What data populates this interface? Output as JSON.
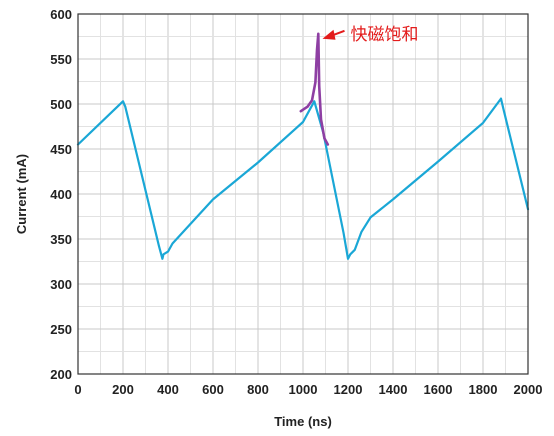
{
  "chart_data": {
    "type": "line",
    "xlabel": "Time (ns)",
    "ylabel": "Current (mA)",
    "xlim": [
      0,
      2000
    ],
    "ylim": [
      200,
      600
    ],
    "xticks": [
      0,
      200,
      400,
      600,
      800,
      1000,
      1200,
      1400,
      1600,
      1800,
      2000
    ],
    "yticks": [
      200,
      250,
      300,
      350,
      400,
      450,
      500,
      550,
      600
    ],
    "grid": true,
    "series": [
      {
        "color": "#1aa7d6",
        "x": [
          0,
          200,
          210,
          360,
          375,
          380,
          400,
          420,
          600,
          800,
          1000,
          1050,
          1090,
          1180,
          1200,
          1210,
          1230,
          1260,
          1300,
          1400,
          1600,
          1800,
          1880,
          1890,
          2000
        ],
        "y": [
          455,
          503,
          497,
          342,
          328,
          333,
          336,
          345,
          394,
          435,
          480,
          503,
          468,
          357,
          328,
          333,
          338,
          358,
          374,
          394,
          436,
          479,
          506,
          495,
          383
        ]
      },
      {
        "color": "#8e3fa3",
        "x": [
          990,
          1020,
          1040,
          1055,
          1062,
          1068,
          1072,
          1080,
          1095,
          1110
        ],
        "y": [
          492,
          497,
          504,
          524,
          560,
          578,
          520,
          483,
          462,
          455
        ]
      }
    ],
    "annotations": [
      {
        "text": "快磁饱和",
        "color": "#e31b1b",
        "x": 1060,
        "y": 578
      }
    ]
  }
}
